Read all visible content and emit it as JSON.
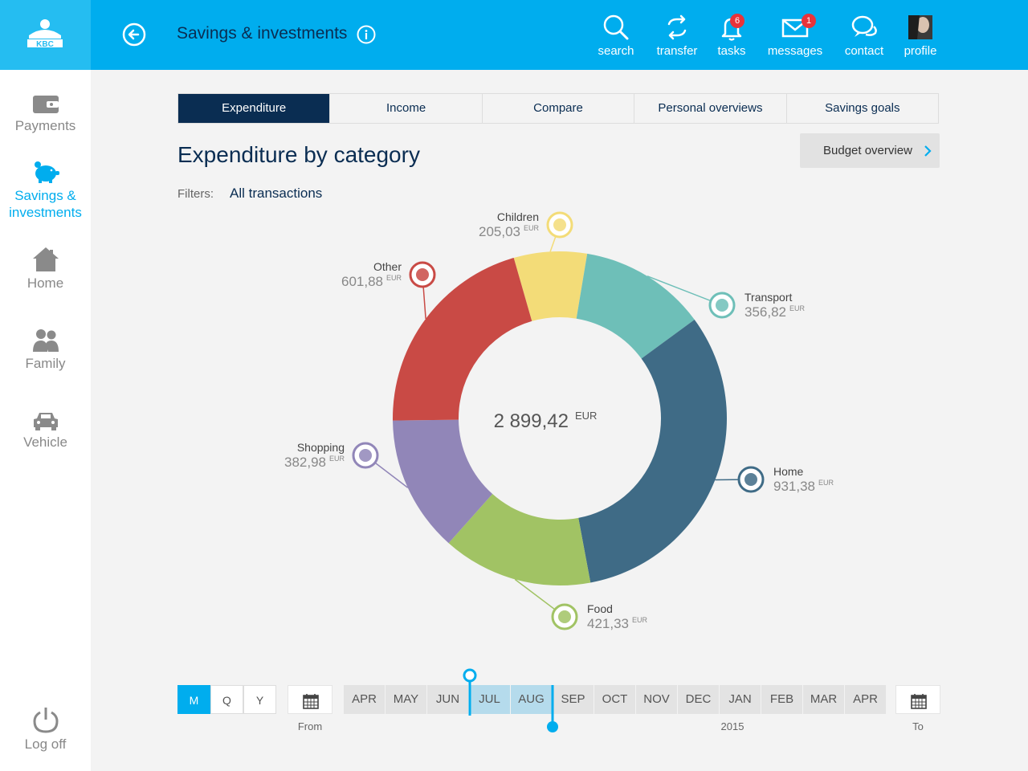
{
  "header": {
    "title": "Savings & investments",
    "nav": [
      {
        "key": "search",
        "label": "search",
        "icon": "search-icon"
      },
      {
        "key": "transfer",
        "label": "transfer",
        "icon": "transfer-icon"
      },
      {
        "key": "tasks",
        "label": "tasks",
        "icon": "bell-icon",
        "badge": "6"
      },
      {
        "key": "messages",
        "label": "messages",
        "icon": "envelope-icon",
        "badge": "1"
      },
      {
        "key": "contact",
        "label": "contact",
        "icon": "chat-icon"
      },
      {
        "key": "profile",
        "label": "profile",
        "icon": "avatar"
      }
    ]
  },
  "sidebar": {
    "items": [
      {
        "label": "Payments",
        "icon": "wallet-icon"
      },
      {
        "label": "Savings & investments",
        "icon": "piggy-bank-icon"
      },
      {
        "label": "Home",
        "icon": "house-icon"
      },
      {
        "label": "Family",
        "icon": "family-icon"
      },
      {
        "label": "Vehicle",
        "icon": "car-icon"
      }
    ],
    "logoff": "Log off"
  },
  "tabs": [
    "Expenditure",
    "Income",
    "Compare",
    "Personal overviews",
    "Savings goals"
  ],
  "main": {
    "heading": "Expenditure by category",
    "budget_button": "Budget overview",
    "filters_label": "Filters:",
    "filters_value": "All transactions"
  },
  "chart_data": {
    "type": "pie",
    "total": "2 899,42",
    "unit": "EUR",
    "categories": [
      "Children",
      "Transport",
      "Home",
      "Food",
      "Shopping",
      "Other"
    ],
    "values": [
      205.03,
      356.82,
      931.38,
      421.33,
      382.98,
      601.88
    ],
    "value_labels": [
      "205,03",
      "356,82",
      "931,38",
      "421,33",
      "382,98",
      "601,88"
    ],
    "colors": [
      "#f3dc78",
      "#6ebfb8",
      "#3f6b86",
      "#a1c364",
      "#9186b8",
      "#c94a45"
    ],
    "icons": [
      "gift-icon",
      "car-icon",
      "house-icon",
      "cart-icon",
      "shirt-icon",
      "more-icon"
    ]
  },
  "timeline": {
    "modes": [
      "M",
      "Q",
      "Y"
    ],
    "active_mode": "M",
    "months": [
      "APR",
      "MAY",
      "JUN",
      "JUL",
      "AUG",
      "SEP",
      "OCT",
      "NOV",
      "DEC",
      "JAN",
      "FEB",
      "MAR",
      "APR"
    ],
    "selected": [
      "JUL",
      "AUG"
    ],
    "from_label": "From",
    "to_label": "To",
    "year": "2015"
  },
  "colors": {
    "accent": "#00adee",
    "navy": "#0a2d52"
  }
}
